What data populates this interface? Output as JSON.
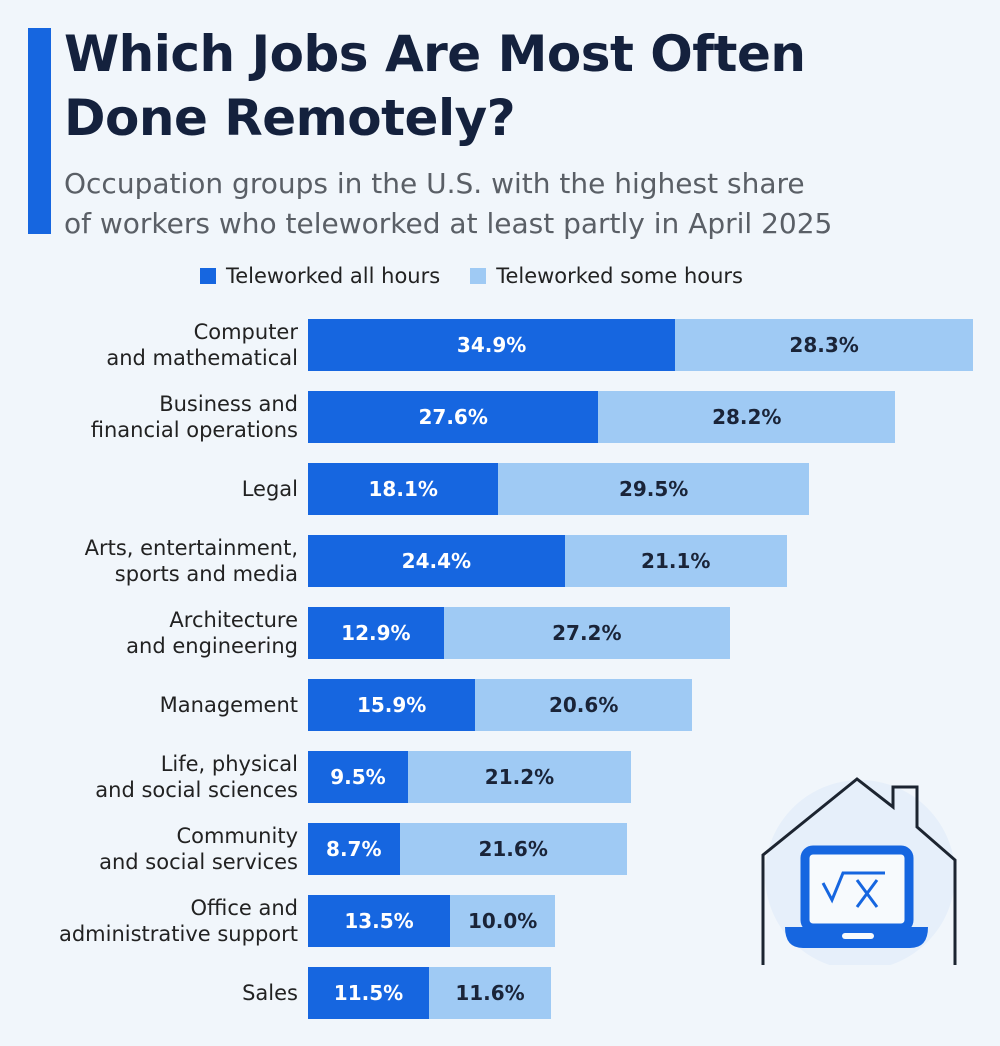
{
  "chart_data": {
    "type": "bar",
    "orientation": "horizontal",
    "stacked": true,
    "title": "Which Jobs Are Most Often Done Remotely?",
    "subtitle": "Occupation groups in the U.S. with the highest share of workers who teleworked at least partly in April 2025",
    "subtitle_lines": [
      "Occupation groups in the U.S. with the highest share",
      "of workers who teleworked at least partly in April 2025"
    ],
    "title_lines": [
      "Which Jobs Are Most Often",
      "Done Remotely?"
    ],
    "legend_placement": "top",
    "grid": false,
    "categories": [
      "Computer\nand mathematical",
      "Business and\nfinancial operations",
      "Legal",
      "Arts, entertainment,\nsports and media",
      "Architecture\nand engineering",
      "Management",
      "Life, physical\nand social sciences",
      "Community\nand social services",
      "Office and\nadministrative support",
      "Sales"
    ],
    "series": [
      {
        "name": "Teleworked all hours",
        "color": "#1666e0",
        "values": [
          34.9,
          27.6,
          18.1,
          24.4,
          12.9,
          15.9,
          9.5,
          8.7,
          13.5,
          11.5
        ]
      },
      {
        "name": "Teleworked some hours",
        "color": "#9fcaf4",
        "values": [
          28.3,
          28.2,
          29.5,
          21.1,
          27.2,
          20.6,
          21.2,
          21.6,
          10.0,
          11.6
        ]
      }
    ],
    "value_suffix": "%",
    "xlim": [
      0,
      63.2
    ]
  },
  "colors": {
    "background": "#f1f6fb",
    "accent": "#1666e0",
    "title": "#14213d"
  },
  "decoration": {
    "icon": "house-with-laptop-sqrt-x-icon"
  }
}
